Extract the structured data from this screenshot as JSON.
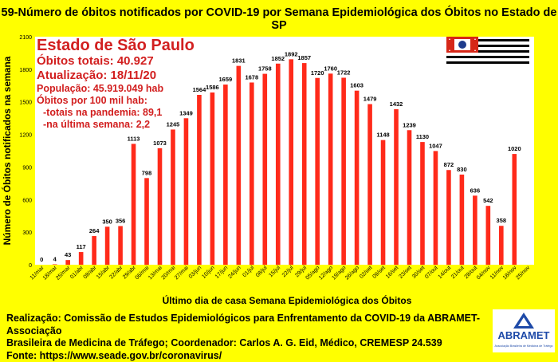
{
  "header": {
    "title": "59-Número de óbitos notificados por COVID-19 por Semana Epidemiológica dos Óbitos  no Estado de SP"
  },
  "info": {
    "state": "Estado de São Paulo",
    "total": "Óbitos totais: 40.927",
    "update": "Atualização: 18/11/20",
    "population": "População: 45.919.049 hab",
    "per100k": "Óbitos por 100 mil hab:",
    "pandemic": "-totais na pandemia: 89,1",
    "lastweek": "-na última semana: 2,2"
  },
  "footer": {
    "line1": "Realização: Comissão de Estudos Epidemiológicos para Enfrentamento da COVID-19 da ABRAMET-Associação",
    "line2": "Brasileira de Medicina de Tráfego; Coordenador: Carlos A. G. Eid, Médico, CREMESP 24.539",
    "line3": "Fonte: https://www.seade.gov.br/coronavirus/"
  },
  "logo": {
    "name": "ABRAMET",
    "subtitle": "Associação Brasileira de Medicina de Tráfego"
  },
  "colors": {
    "background": "#FFFF00",
    "bar": "#FF2A1A",
    "info_text": "#D21F1F"
  },
  "chart_data": {
    "type": "bar",
    "ylabel": "Número de Óbitos notificados na semana",
    "xlabel": "Último dia de casa Semana Epidemiológica dos Óbitos",
    "ylim": [
      0,
      2100
    ],
    "yticks": [
      0,
      300,
      600,
      900,
      1200,
      1500,
      1800,
      2100
    ],
    "categories": [
      "11/mar",
      "18/mar",
      "25/mar",
      "01/abr",
      "08/abr",
      "15/abr",
      "22/abr",
      "29/abr",
      "06/mai",
      "13/mai",
      "20/mai",
      "27/mai",
      "03/jun",
      "10/jun",
      "17/jun",
      "24/jun",
      "01/jul",
      "08/jul",
      "15/jul",
      "22/jul",
      "29/jul",
      "05/ago",
      "12/ago",
      "19/ago",
      "26/ago",
      "02/set",
      "09/set",
      "16/set",
      "23/set",
      "30/set",
      "07/out",
      "14/out",
      "21/out",
      "28/out",
      "04/nov",
      "11/nov",
      "18/nov",
      "25/nov"
    ],
    "values": [
      0,
      4,
      43,
      117,
      264,
      350,
      356,
      1113,
      798,
      1073,
      1245,
      1349,
      1564,
      1586,
      1659,
      1831,
      1678,
      1758,
      1852,
      1892,
      1857,
      1720,
      1760,
      1722,
      1603,
      1479,
      1148,
      1432,
      1239,
      1130,
      1047,
      872,
      830,
      636,
      542,
      358,
      1020,
      null
    ],
    "grid": false,
    "legend": "none"
  }
}
